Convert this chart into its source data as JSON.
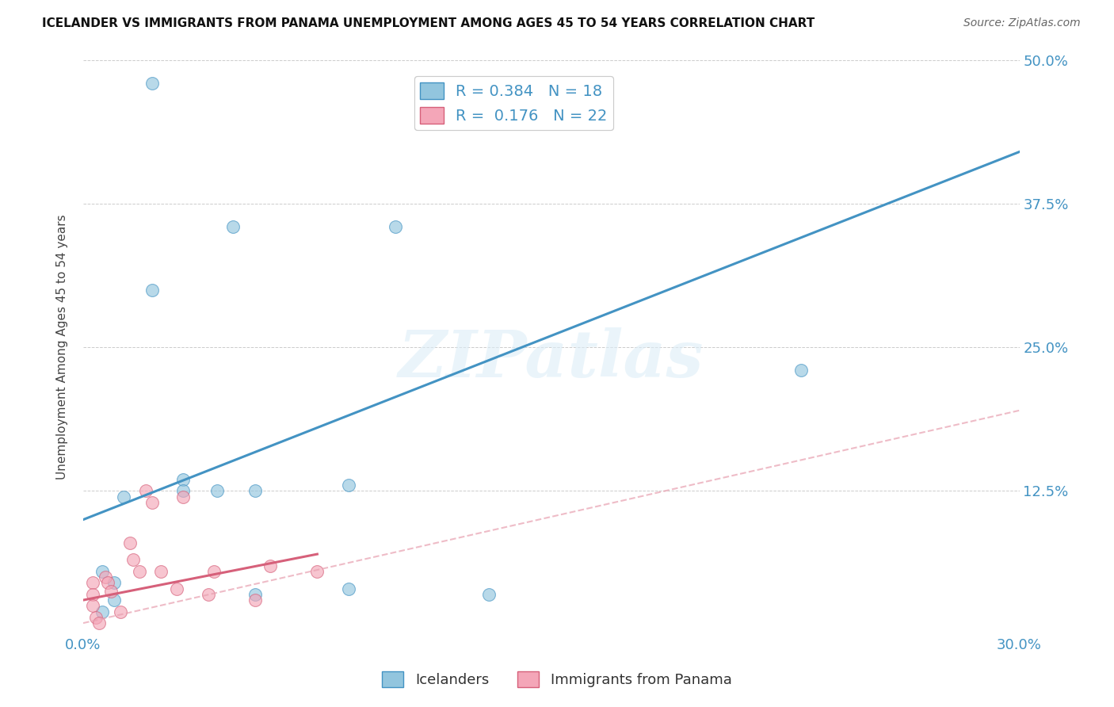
{
  "title": "ICELANDER VS IMMIGRANTS FROM PANAMA UNEMPLOYMENT AMONG AGES 45 TO 54 YEARS CORRELATION CHART",
  "source": "Source: ZipAtlas.com",
  "ylabel": "Unemployment Among Ages 45 to 54 years",
  "xlim": [
    0.0,
    0.3
  ],
  "ylim": [
    0.0,
    0.5
  ],
  "xticks": [
    0.0,
    0.05,
    0.1,
    0.15,
    0.2,
    0.25,
    0.3
  ],
  "xticklabels": [
    "0.0%",
    "",
    "",
    "",
    "",
    "",
    "30.0%"
  ],
  "yticks": [
    0.0,
    0.125,
    0.25,
    0.375,
    0.5
  ],
  "yticklabels_right": [
    "",
    "12.5%",
    "25.0%",
    "37.5%",
    "50.0%"
  ],
  "R_blue": 0.384,
  "N_blue": 18,
  "R_pink": 0.176,
  "N_pink": 22,
  "blue_scatter_x": [
    0.022,
    0.048,
    0.1,
    0.022,
    0.032,
    0.032,
    0.043,
    0.006,
    0.006,
    0.01,
    0.01,
    0.013,
    0.055,
    0.055,
    0.085,
    0.23,
    0.085,
    0.13
  ],
  "blue_scatter_y": [
    0.48,
    0.355,
    0.355,
    0.3,
    0.135,
    0.125,
    0.125,
    0.055,
    0.02,
    0.045,
    0.03,
    0.12,
    0.035,
    0.125,
    0.13,
    0.23,
    0.04,
    0.035
  ],
  "pink_scatter_x": [
    0.003,
    0.003,
    0.003,
    0.004,
    0.005,
    0.007,
    0.008,
    0.009,
    0.012,
    0.015,
    0.016,
    0.018,
    0.02,
    0.022,
    0.025,
    0.03,
    0.032,
    0.04,
    0.042,
    0.055,
    0.06,
    0.075
  ],
  "pink_scatter_y": [
    0.045,
    0.035,
    0.025,
    0.015,
    0.01,
    0.05,
    0.045,
    0.038,
    0.02,
    0.08,
    0.065,
    0.055,
    0.125,
    0.115,
    0.055,
    0.04,
    0.12,
    0.035,
    0.055,
    0.03,
    0.06,
    0.055
  ],
  "blue_line_x": [
    0.0,
    0.3
  ],
  "blue_line_y": [
    0.1,
    0.42
  ],
  "pink_solid_line_x": [
    0.0,
    0.075
  ],
  "pink_solid_line_y": [
    0.03,
    0.07
  ],
  "pink_dashed_line_x": [
    0.0,
    0.3
  ],
  "pink_dashed_line_y": [
    0.01,
    0.195
  ],
  "blue_color": "#92c5de",
  "pink_color": "#f4a6b8",
  "blue_line_color": "#4393c3",
  "pink_line_color": "#d6607a",
  "pink_dashed_color": "#e8a0b0",
  "watermark": "ZIPatlas",
  "background_color": "#ffffff",
  "tick_color": "#4393c3"
}
